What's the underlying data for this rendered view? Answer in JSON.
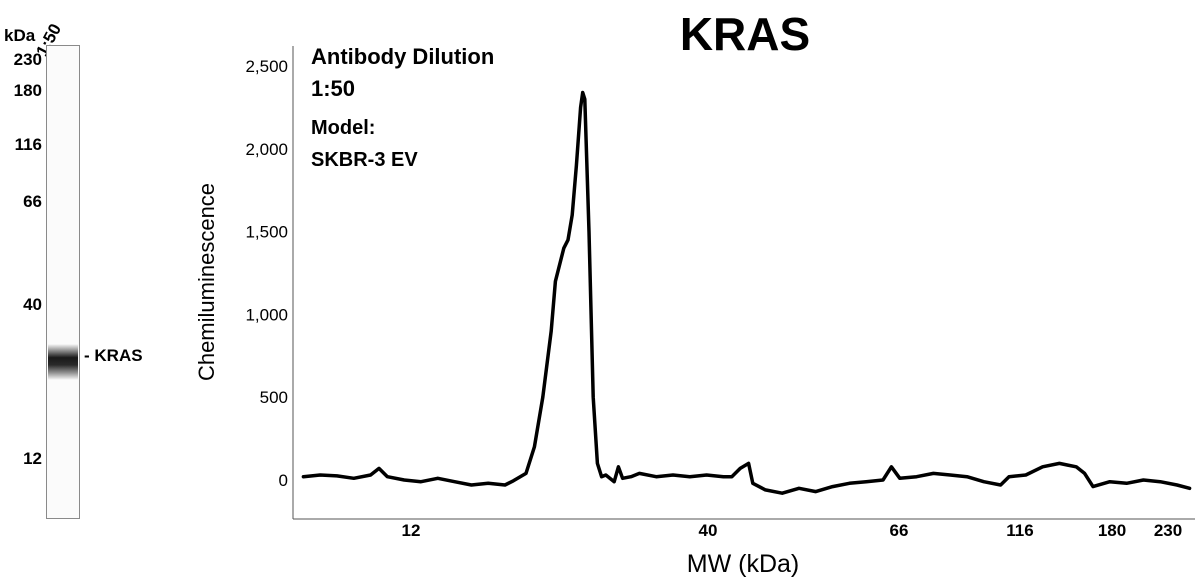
{
  "blot": {
    "unit": "kDa",
    "lane_label": "1:50",
    "markers": [
      "230",
      "180",
      "116",
      "66",
      "40",
      "12"
    ],
    "band_label": "- KRAS"
  },
  "annotation": {
    "line1": "Antibody Dilution",
    "line2": "1:50",
    "line3": "Model:",
    "line4": "SKBR-3 EV"
  },
  "chart_data": {
    "type": "line",
    "title": "KRAS",
    "xlabel": "MW (kDa)",
    "ylabel": "Chemiluminescence",
    "x_ticks": [
      "12",
      "40",
      "66",
      "116",
      "180",
      "230"
    ],
    "y_ticks": [
      "0",
      "500",
      "1,000",
      "1,500",
      "2,000",
      "2,500"
    ],
    "ylim": [
      -100,
      2600
    ],
    "grid": false,
    "series": [
      {
        "values": [
          [
            2,
            20
          ],
          [
            6,
            30
          ],
          [
            10,
            25
          ],
          [
            14,
            10
          ],
          [
            18,
            30
          ],
          [
            20,
            70
          ],
          [
            22,
            20
          ],
          [
            26,
            0
          ],
          [
            30,
            -10
          ],
          [
            34,
            10
          ],
          [
            38,
            -10
          ],
          [
            42,
            -30
          ],
          [
            46,
            -20
          ],
          [
            50,
            -30
          ],
          [
            52,
            -5
          ],
          [
            55,
            40
          ],
          [
            57,
            200
          ],
          [
            59,
            500
          ],
          [
            61,
            900
          ],
          [
            62,
            1200
          ],
          [
            64,
            1400
          ],
          [
            65,
            1450
          ],
          [
            66,
            1600
          ],
          [
            67,
            1900
          ],
          [
            68,
            2250
          ],
          [
            68.5,
            2340
          ],
          [
            69,
            2300
          ],
          [
            70,
            1500
          ],
          [
            71,
            500
          ],
          [
            72,
            100
          ],
          [
            73,
            20
          ],
          [
            74,
            30
          ],
          [
            76,
            -10
          ],
          [
            77,
            80
          ],
          [
            78,
            10
          ],
          [
            80,
            20
          ],
          [
            82,
            40
          ],
          [
            86,
            20
          ],
          [
            90,
            30
          ],
          [
            94,
            20
          ],
          [
            98,
            30
          ],
          [
            102,
            20
          ],
          [
            104,
            20
          ],
          [
            106,
            70
          ],
          [
            108,
            100
          ],
          [
            109,
            -20
          ],
          [
            112,
            -60
          ],
          [
            116,
            -80
          ],
          [
            120,
            -50
          ],
          [
            124,
            -70
          ],
          [
            128,
            -40
          ],
          [
            132,
            -20
          ],
          [
            136,
            -10
          ],
          [
            140,
            0
          ],
          [
            142,
            80
          ],
          [
            144,
            10
          ],
          [
            148,
            20
          ],
          [
            152,
            40
          ],
          [
            156,
            30
          ],
          [
            160,
            20
          ],
          [
            164,
            -10
          ],
          [
            168,
            -30
          ],
          [
            170,
            20
          ],
          [
            174,
            30
          ],
          [
            178,
            80
          ],
          [
            182,
            100
          ],
          [
            184,
            90
          ],
          [
            186,
            80
          ],
          [
            188,
            40
          ],
          [
            190,
            -40
          ],
          [
            194,
            -10
          ],
          [
            198,
            -20
          ],
          [
            202,
            0
          ],
          [
            206,
            -10
          ],
          [
            210,
            -30
          ],
          [
            213,
            -50
          ]
        ]
      }
    ]
  }
}
